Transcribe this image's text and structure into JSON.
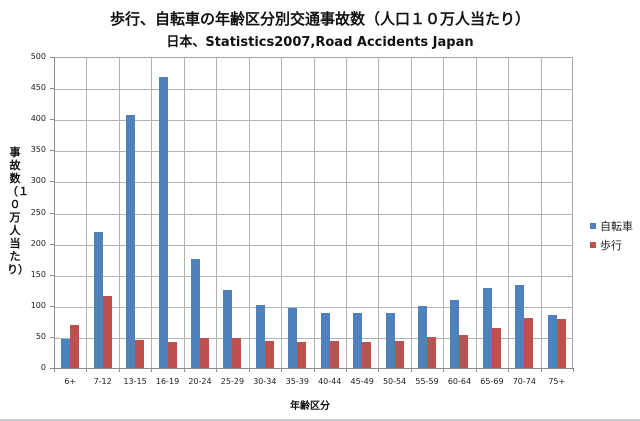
{
  "chart_data": {
    "type": "bar",
    "title": "歩行、自転車の年齢区分別交通事故数（人口１０万人当たり）",
    "subtitle": "日本、Statistics2007,Road Accidents Japan",
    "xlabel": "年齢区分",
    "ylabel": "事故数（１０万人当たり）",
    "ylim": [
      0,
      500
    ],
    "yticks": [
      0,
      50,
      100,
      150,
      200,
      250,
      300,
      350,
      400,
      450,
      500
    ],
    "grid": true,
    "legend_position": "right",
    "categories": [
      "6+",
      "7-12",
      "13-15",
      "16-19",
      "20-24",
      "25-29",
      "30-34",
      "35-39",
      "40-44",
      "45-49",
      "50-54",
      "55-59",
      "60-64",
      "65-69",
      "70-74",
      "75+"
    ],
    "series": [
      {
        "name": "自転車",
        "color": "#4f81bd",
        "values": [
          46,
          219,
          407,
          468,
          175,
          126,
          101,
          97,
          88,
          88,
          88,
          99,
          110,
          128,
          133,
          86
        ]
      },
      {
        "name": "歩行",
        "color": "#c0504d",
        "values": [
          69,
          116,
          45,
          41,
          49,
          48,
          43,
          42,
          44,
          42,
          44,
          50,
          53,
          64,
          80,
          79
        ]
      }
    ]
  }
}
